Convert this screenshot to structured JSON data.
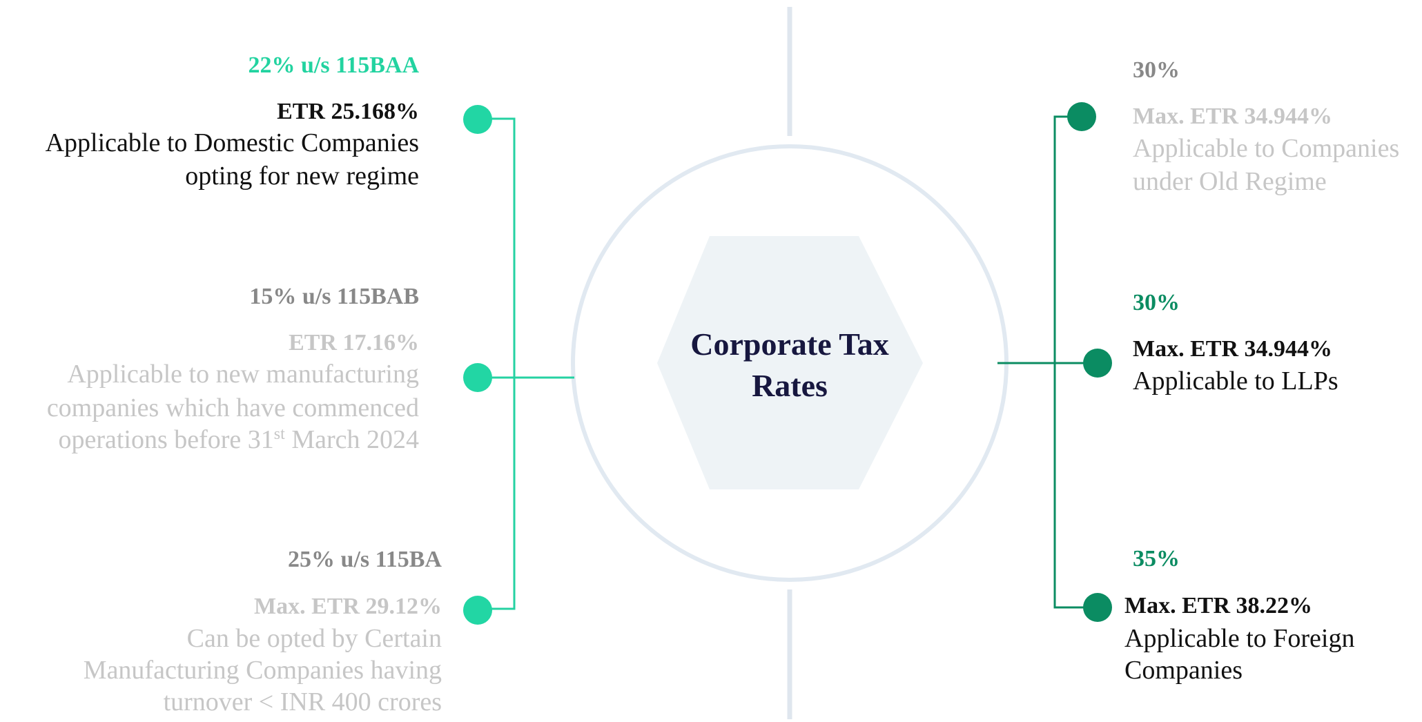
{
  "center": {
    "title_lines": [
      "Corporate Tax",
      "Rates"
    ]
  },
  "left": [
    {
      "heading": "22% u/s 115BAA",
      "etr": "ETR 25.168%",
      "description": [
        "Applicable to Domestic Companies",
        "opting for new regime"
      ]
    },
    {
      "heading": "15% u/s 115BAB",
      "etr": "ETR 17.16%",
      "description": [
        "Applicable to new manufacturing",
        "companies which have commenced",
        [
          "operations before 31",
          "st",
          " March 2024"
        ]
      ]
    },
    {
      "heading": "25% u/s 115BA",
      "etr": "Max. ETR 29.12%",
      "description": [
        "Can be opted by Certain",
        "Manufacturing Companies having",
        "turnover < INR 400 crores"
      ]
    }
  ],
  "right": [
    {
      "heading": "30%",
      "etr": "Max. ETR 34.944%",
      "description": [
        "Applicable to Companies",
        "under Old Regime"
      ]
    },
    {
      "heading": "30%",
      "etr": "Max. ETR 34.944%",
      "description": [
        "Applicable to LLPs"
      ]
    },
    {
      "heading": "35%",
      "etr": "Max. ETR 38.22%",
      "description": [
        "Applicable to Foreign",
        "Companies"
      ]
    }
  ]
}
